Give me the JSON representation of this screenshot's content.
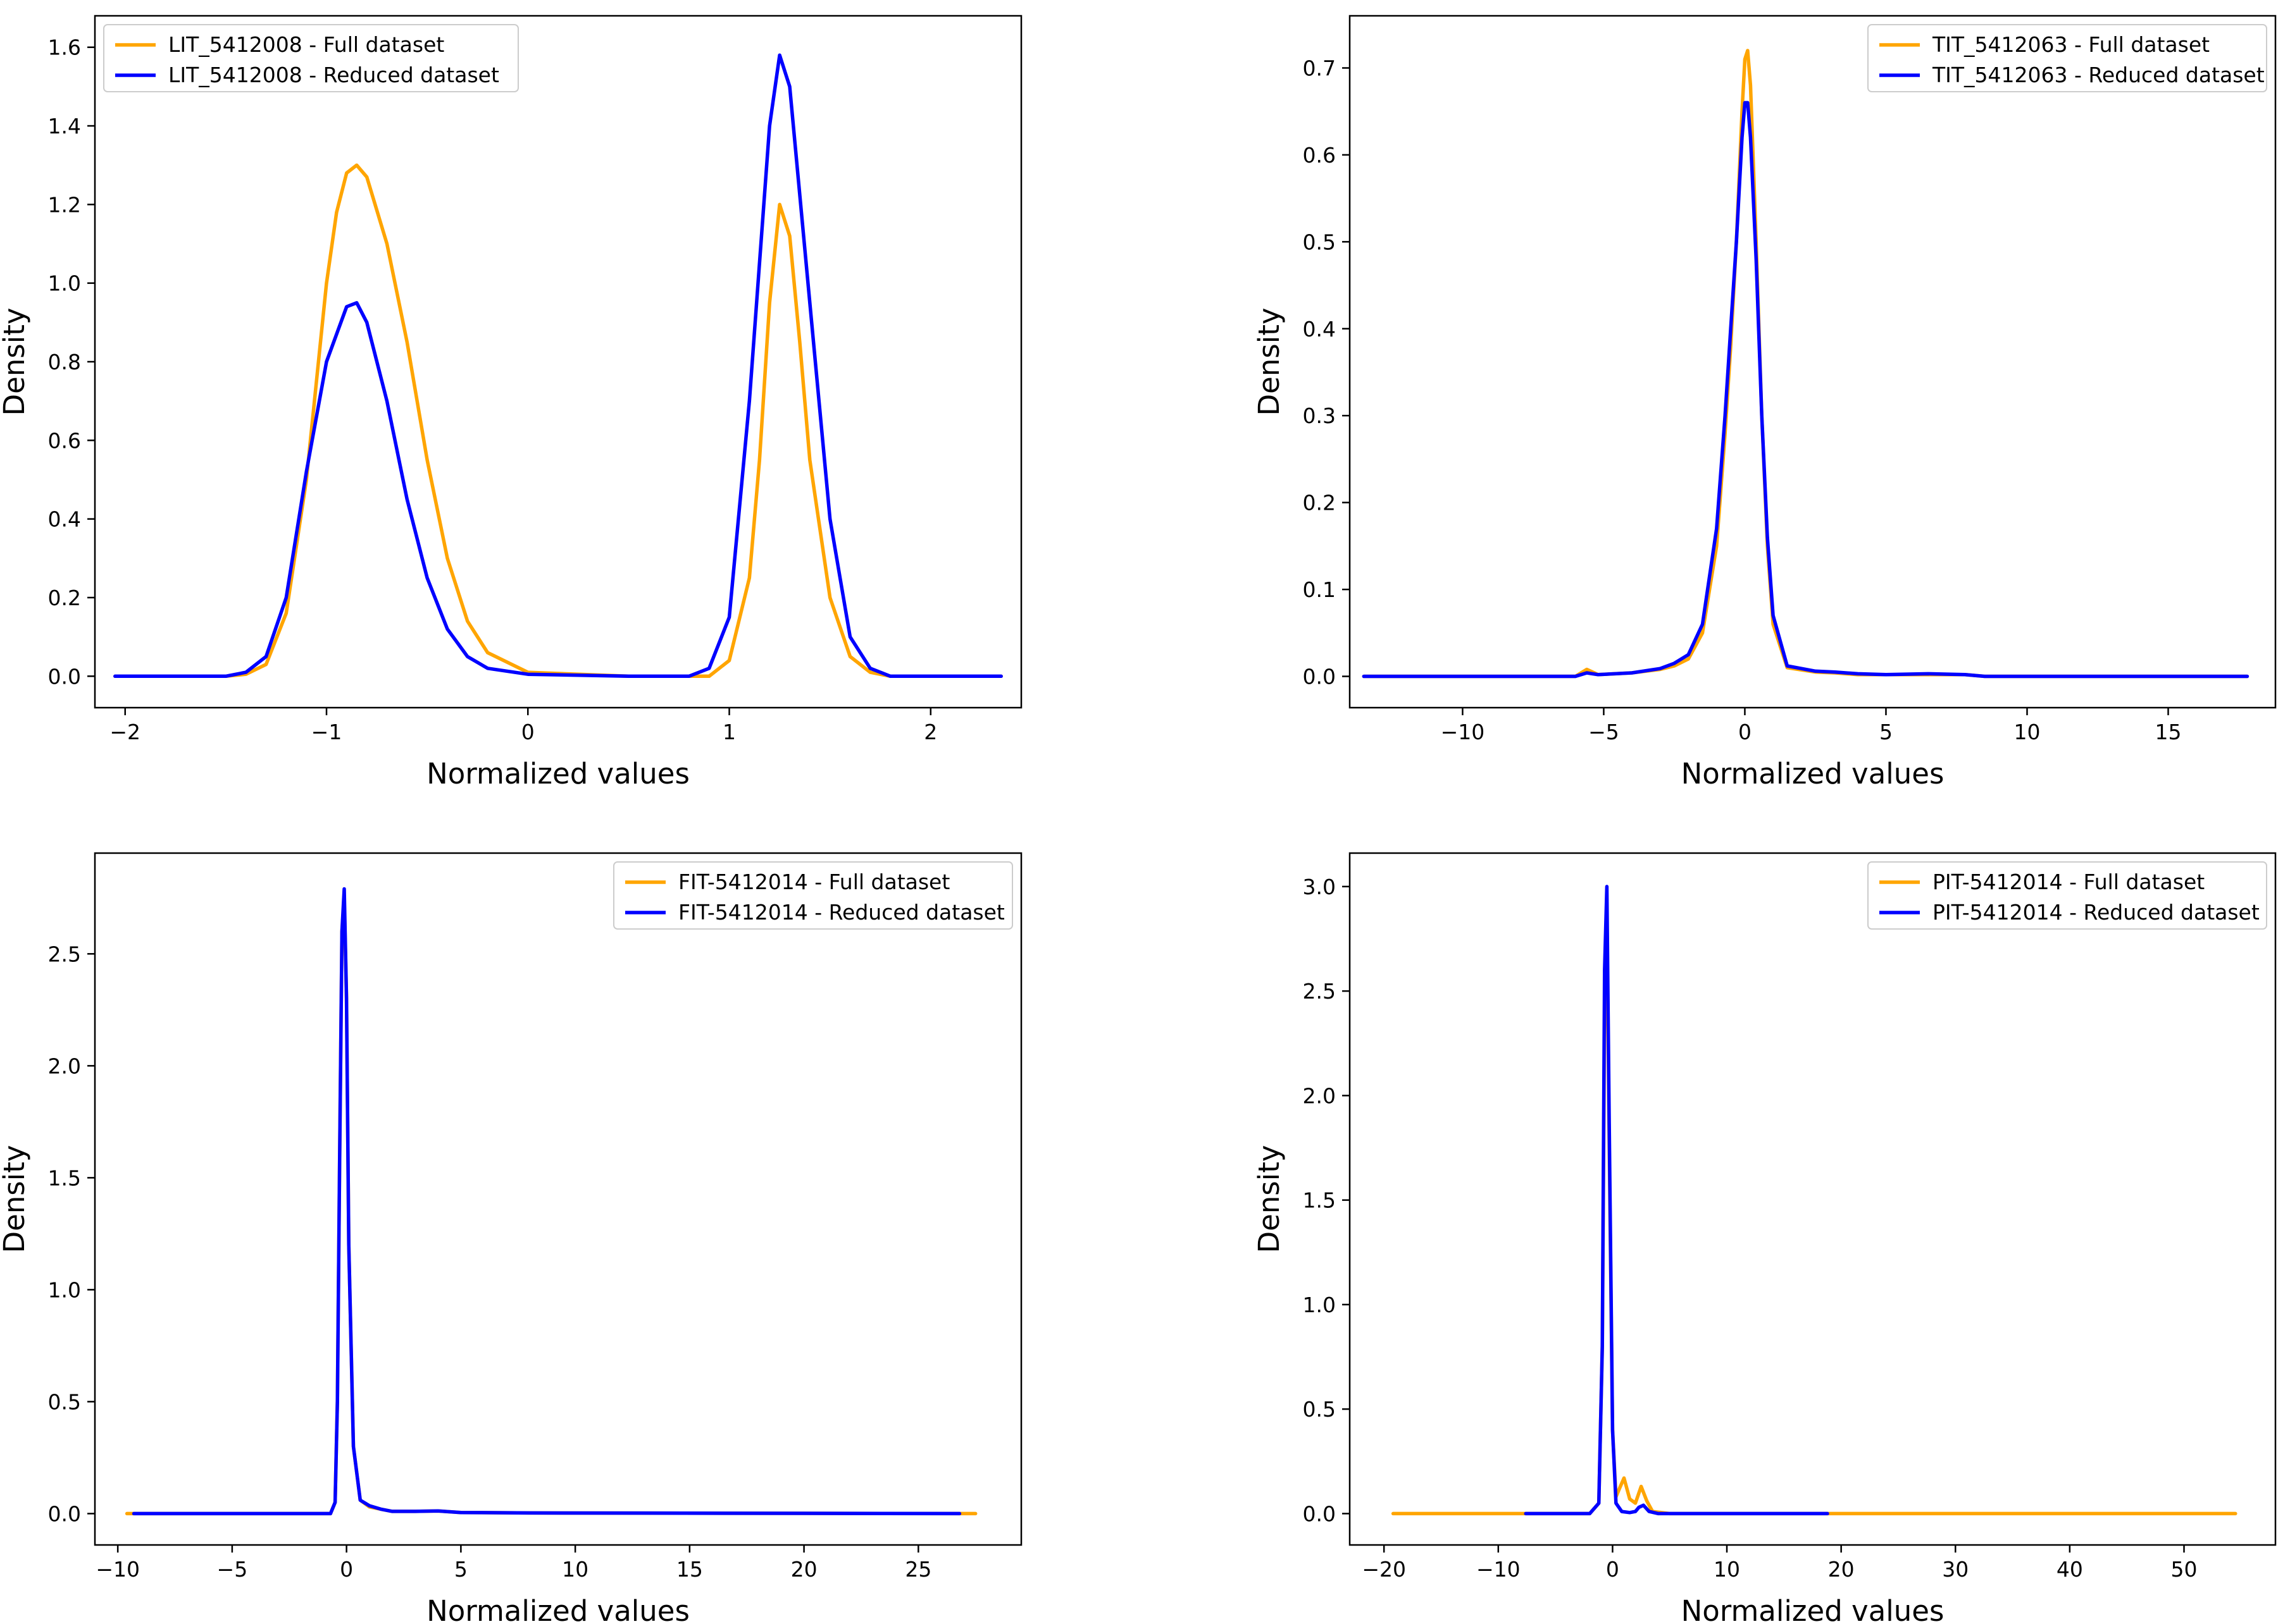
{
  "figure": {
    "colors": {
      "full": "#FFA500",
      "reduced": "#0000FF",
      "axes": "#000000"
    }
  },
  "chart_data": [
    {
      "type": "line",
      "panel": "top-left",
      "xlabel": "Normalized values",
      "ylabel": "Density",
      "xlim": [
        -2.15,
        2.45
      ],
      "ylim": [
        -0.08,
        1.68
      ],
      "xticks": [
        -2,
        -1,
        0,
        1,
        2
      ],
      "xtick_labels": [
        "−2",
        "−1",
        "0",
        "1",
        "2"
      ],
      "yticks": [
        0.0,
        0.2,
        0.4,
        0.6,
        0.8,
        1.0,
        1.2,
        1.4,
        1.6
      ],
      "ytick_labels": [
        "0.0",
        "0.2",
        "0.4",
        "0.6",
        "0.8",
        "1.0",
        "1.2",
        "1.4",
        "1.6"
      ],
      "legend_position": "top-left",
      "series": [
        {
          "name": "LIT_5412008 - Full dataset",
          "color": "#FFA500",
          "x": [
            -2.05,
            -1.5,
            -1.4,
            -1.3,
            -1.2,
            -1.1,
            -1.0,
            -0.95,
            -0.9,
            -0.85,
            -0.8,
            -0.7,
            -0.6,
            -0.5,
            -0.4,
            -0.3,
            -0.2,
            0.0,
            0.5,
            0.9,
            1.0,
            1.1,
            1.15,
            1.2,
            1.25,
            1.3,
            1.35,
            1.4,
            1.5,
            1.6,
            1.7,
            1.8,
            2.35
          ],
          "y": [
            0.0,
            0.0,
            0.005,
            0.03,
            0.16,
            0.5,
            1.0,
            1.18,
            1.28,
            1.3,
            1.27,
            1.1,
            0.85,
            0.55,
            0.3,
            0.14,
            0.06,
            0.01,
            0.0,
            0.0,
            0.04,
            0.25,
            0.55,
            0.95,
            1.2,
            1.12,
            0.85,
            0.55,
            0.2,
            0.05,
            0.01,
            0.0,
            0.0
          ]
        },
        {
          "name": "LIT_5412008 - Reduced dataset",
          "color": "#0000FF",
          "x": [
            -2.05,
            -1.5,
            -1.4,
            -1.3,
            -1.2,
            -1.1,
            -1.0,
            -0.9,
            -0.85,
            -0.8,
            -0.7,
            -0.6,
            -0.5,
            -0.4,
            -0.3,
            -0.2,
            0.0,
            0.5,
            0.8,
            0.9,
            1.0,
            1.1,
            1.2,
            1.25,
            1.3,
            1.4,
            1.5,
            1.6,
            1.7,
            1.8,
            2.35
          ],
          "y": [
            0.0,
            0.0,
            0.01,
            0.05,
            0.2,
            0.52,
            0.8,
            0.94,
            0.95,
            0.9,
            0.7,
            0.45,
            0.25,
            0.12,
            0.05,
            0.02,
            0.005,
            0.0,
            0.0,
            0.02,
            0.15,
            0.7,
            1.4,
            1.58,
            1.5,
            0.95,
            0.4,
            0.1,
            0.02,
            0.0,
            0.0
          ]
        }
      ]
    },
    {
      "type": "line",
      "panel": "top-right",
      "xlabel": "Normalized values",
      "ylabel": "Density",
      "xlim": [
        -14.0,
        18.8
      ],
      "ylim": [
        -0.036,
        0.76
      ],
      "xticks": [
        -10,
        -5,
        0,
        5,
        10,
        15
      ],
      "xtick_labels": [
        "−10",
        "−5",
        "0",
        "5",
        "10",
        "15"
      ],
      "yticks": [
        0.0,
        0.1,
        0.2,
        0.3,
        0.4,
        0.5,
        0.6,
        0.7
      ],
      "ytick_labels": [
        "0.0",
        "0.1",
        "0.2",
        "0.3",
        "0.4",
        "0.5",
        "0.6",
        "0.7"
      ],
      "legend_position": "top-right",
      "series": [
        {
          "name": "TIT_5412063 - Full dataset",
          "color": "#FFA500",
          "x": [
            -13.5,
            -6.0,
            -5.6,
            -5.2,
            -4.0,
            -3.0,
            -2.5,
            -2.0,
            -1.5,
            -1.0,
            -0.7,
            -0.5,
            -0.3,
            -0.1,
            0.0,
            0.1,
            0.2,
            0.4,
            0.6,
            0.8,
            1.0,
            1.5,
            2.5,
            3.2,
            4.0,
            6.5,
            7.8,
            8.5,
            17.8
          ],
          "y": [
            0.0,
            0.0,
            0.008,
            0.002,
            0.004,
            0.008,
            0.012,
            0.02,
            0.05,
            0.15,
            0.28,
            0.38,
            0.5,
            0.65,
            0.71,
            0.72,
            0.68,
            0.5,
            0.3,
            0.15,
            0.06,
            0.01,
            0.005,
            0.004,
            0.002,
            0.002,
            0.002,
            0.0,
            0.0
          ]
        },
        {
          "name": "TIT_5412063 - Reduced dataset",
          "color": "#0000FF",
          "x": [
            -13.5,
            -6.0,
            -5.6,
            -5.2,
            -4.0,
            -3.0,
            -2.5,
            -2.0,
            -1.5,
            -1.0,
            -0.7,
            -0.5,
            -0.3,
            -0.1,
            0.0,
            0.1,
            0.2,
            0.4,
            0.6,
            0.8,
            1.0,
            1.5,
            2.5,
            3.2,
            4.0,
            5.0,
            6.5,
            7.8,
            8.5,
            17.8
          ],
          "y": [
            0.0,
            0.0,
            0.004,
            0.002,
            0.004,
            0.009,
            0.015,
            0.025,
            0.06,
            0.17,
            0.3,
            0.4,
            0.5,
            0.62,
            0.66,
            0.66,
            0.62,
            0.48,
            0.3,
            0.16,
            0.07,
            0.012,
            0.006,
            0.005,
            0.003,
            0.002,
            0.003,
            0.002,
            0.0,
            0.0
          ]
        }
      ]
    },
    {
      "type": "line",
      "panel": "bottom-left",
      "xlabel": "Normalized values",
      "ylabel": "Density",
      "xlim": [
        -11.0,
        29.5
      ],
      "ylim": [
        -0.14,
        2.95
      ],
      "xticks": [
        -10,
        -5,
        0,
        5,
        10,
        15,
        20,
        25
      ],
      "xtick_labels": [
        "−10",
        "−5",
        "0",
        "5",
        "10",
        "15",
        "20",
        "25"
      ],
      "yticks": [
        0.0,
        0.5,
        1.0,
        1.5,
        2.0,
        2.5
      ],
      "ytick_labels": [
        "0.0",
        "0.5",
        "1.0",
        "1.5",
        "2.0",
        "2.5"
      ],
      "legend_position": "top-right",
      "series": [
        {
          "name": "FIT-5412014 - Full dataset",
          "color": "#FFA500",
          "x": [
            -9.6,
            -0.7,
            -0.5,
            -0.4,
            -0.3,
            -0.2,
            -0.1,
            0.0,
            0.1,
            0.3,
            0.6,
            1.0,
            1.5,
            2.0,
            3.0,
            4.0,
            5.0,
            8.0,
            27.5
          ],
          "y": [
            0.0,
            0.0,
            0.05,
            0.5,
            1.6,
            2.6,
            2.75,
            2.3,
            1.2,
            0.3,
            0.06,
            0.03,
            0.02,
            0.01,
            0.01,
            0.012,
            0.005,
            0.003,
            0.0
          ]
        },
        {
          "name": "FIT-5412014 - Reduced dataset",
          "color": "#0000FF",
          "x": [
            -9.3,
            -0.7,
            -0.5,
            -0.4,
            -0.3,
            -0.2,
            -0.1,
            0.0,
            0.1,
            0.3,
            0.6,
            1.0,
            1.5,
            2.0,
            3.0,
            4.0,
            5.0,
            8.0,
            26.8
          ],
          "y": [
            0.0,
            0.0,
            0.05,
            0.5,
            1.6,
            2.6,
            2.79,
            2.3,
            1.2,
            0.3,
            0.06,
            0.035,
            0.02,
            0.01,
            0.01,
            0.012,
            0.005,
            0.003,
            0.0
          ]
        }
      ]
    },
    {
      "type": "line",
      "panel": "bottom-right",
      "xlabel": "Normalized values",
      "ylabel": "Density",
      "xlim": [
        -23.0,
        58.0
      ],
      "ylim": [
        -0.15,
        3.16
      ],
      "xticks": [
        -20,
        -10,
        0,
        10,
        20,
        30,
        40,
        50
      ],
      "xtick_labels": [
        "−20",
        "−10",
        "0",
        "10",
        "20",
        "30",
        "40",
        "50"
      ],
      "yticks": [
        0.0,
        0.5,
        1.0,
        1.5,
        2.0,
        2.5,
        3.0
      ],
      "ytick_labels": [
        "0.0",
        "0.5",
        "1.0",
        "1.5",
        "2.0",
        "2.5",
        "3.0"
      ],
      "legend_position": "top-right",
      "series": [
        {
          "name": "PIT-5412014 - Full dataset",
          "color": "#FFA500",
          "x": [
            -19.2,
            -2.0,
            -1.2,
            -0.9,
            -0.7,
            -0.5,
            -0.3,
            0.0,
            0.3,
            0.6,
            1.0,
            1.5,
            2.0,
            2.5,
            3.0,
            3.5,
            5.0,
            54.5
          ],
          "y": [
            0.0,
            0.0,
            0.05,
            0.8,
            2.4,
            2.85,
            1.8,
            0.4,
            0.08,
            0.12,
            0.17,
            0.07,
            0.05,
            0.13,
            0.06,
            0.01,
            0.0,
            0.0
          ]
        },
        {
          "name": "PIT-5412014 - Reduced dataset",
          "color": "#0000FF",
          "x": [
            -7.6,
            -2.0,
            -1.2,
            -0.9,
            -0.7,
            -0.5,
            -0.3,
            0.0,
            0.3,
            0.8,
            1.5,
            2.0,
            2.3,
            2.7,
            3.2,
            4.0,
            18.8
          ],
          "y": [
            0.0,
            0.0,
            0.05,
            0.8,
            2.6,
            3.0,
            1.9,
            0.4,
            0.05,
            0.01,
            0.005,
            0.01,
            0.03,
            0.04,
            0.01,
            0.0,
            0.0
          ]
        }
      ]
    }
  ]
}
